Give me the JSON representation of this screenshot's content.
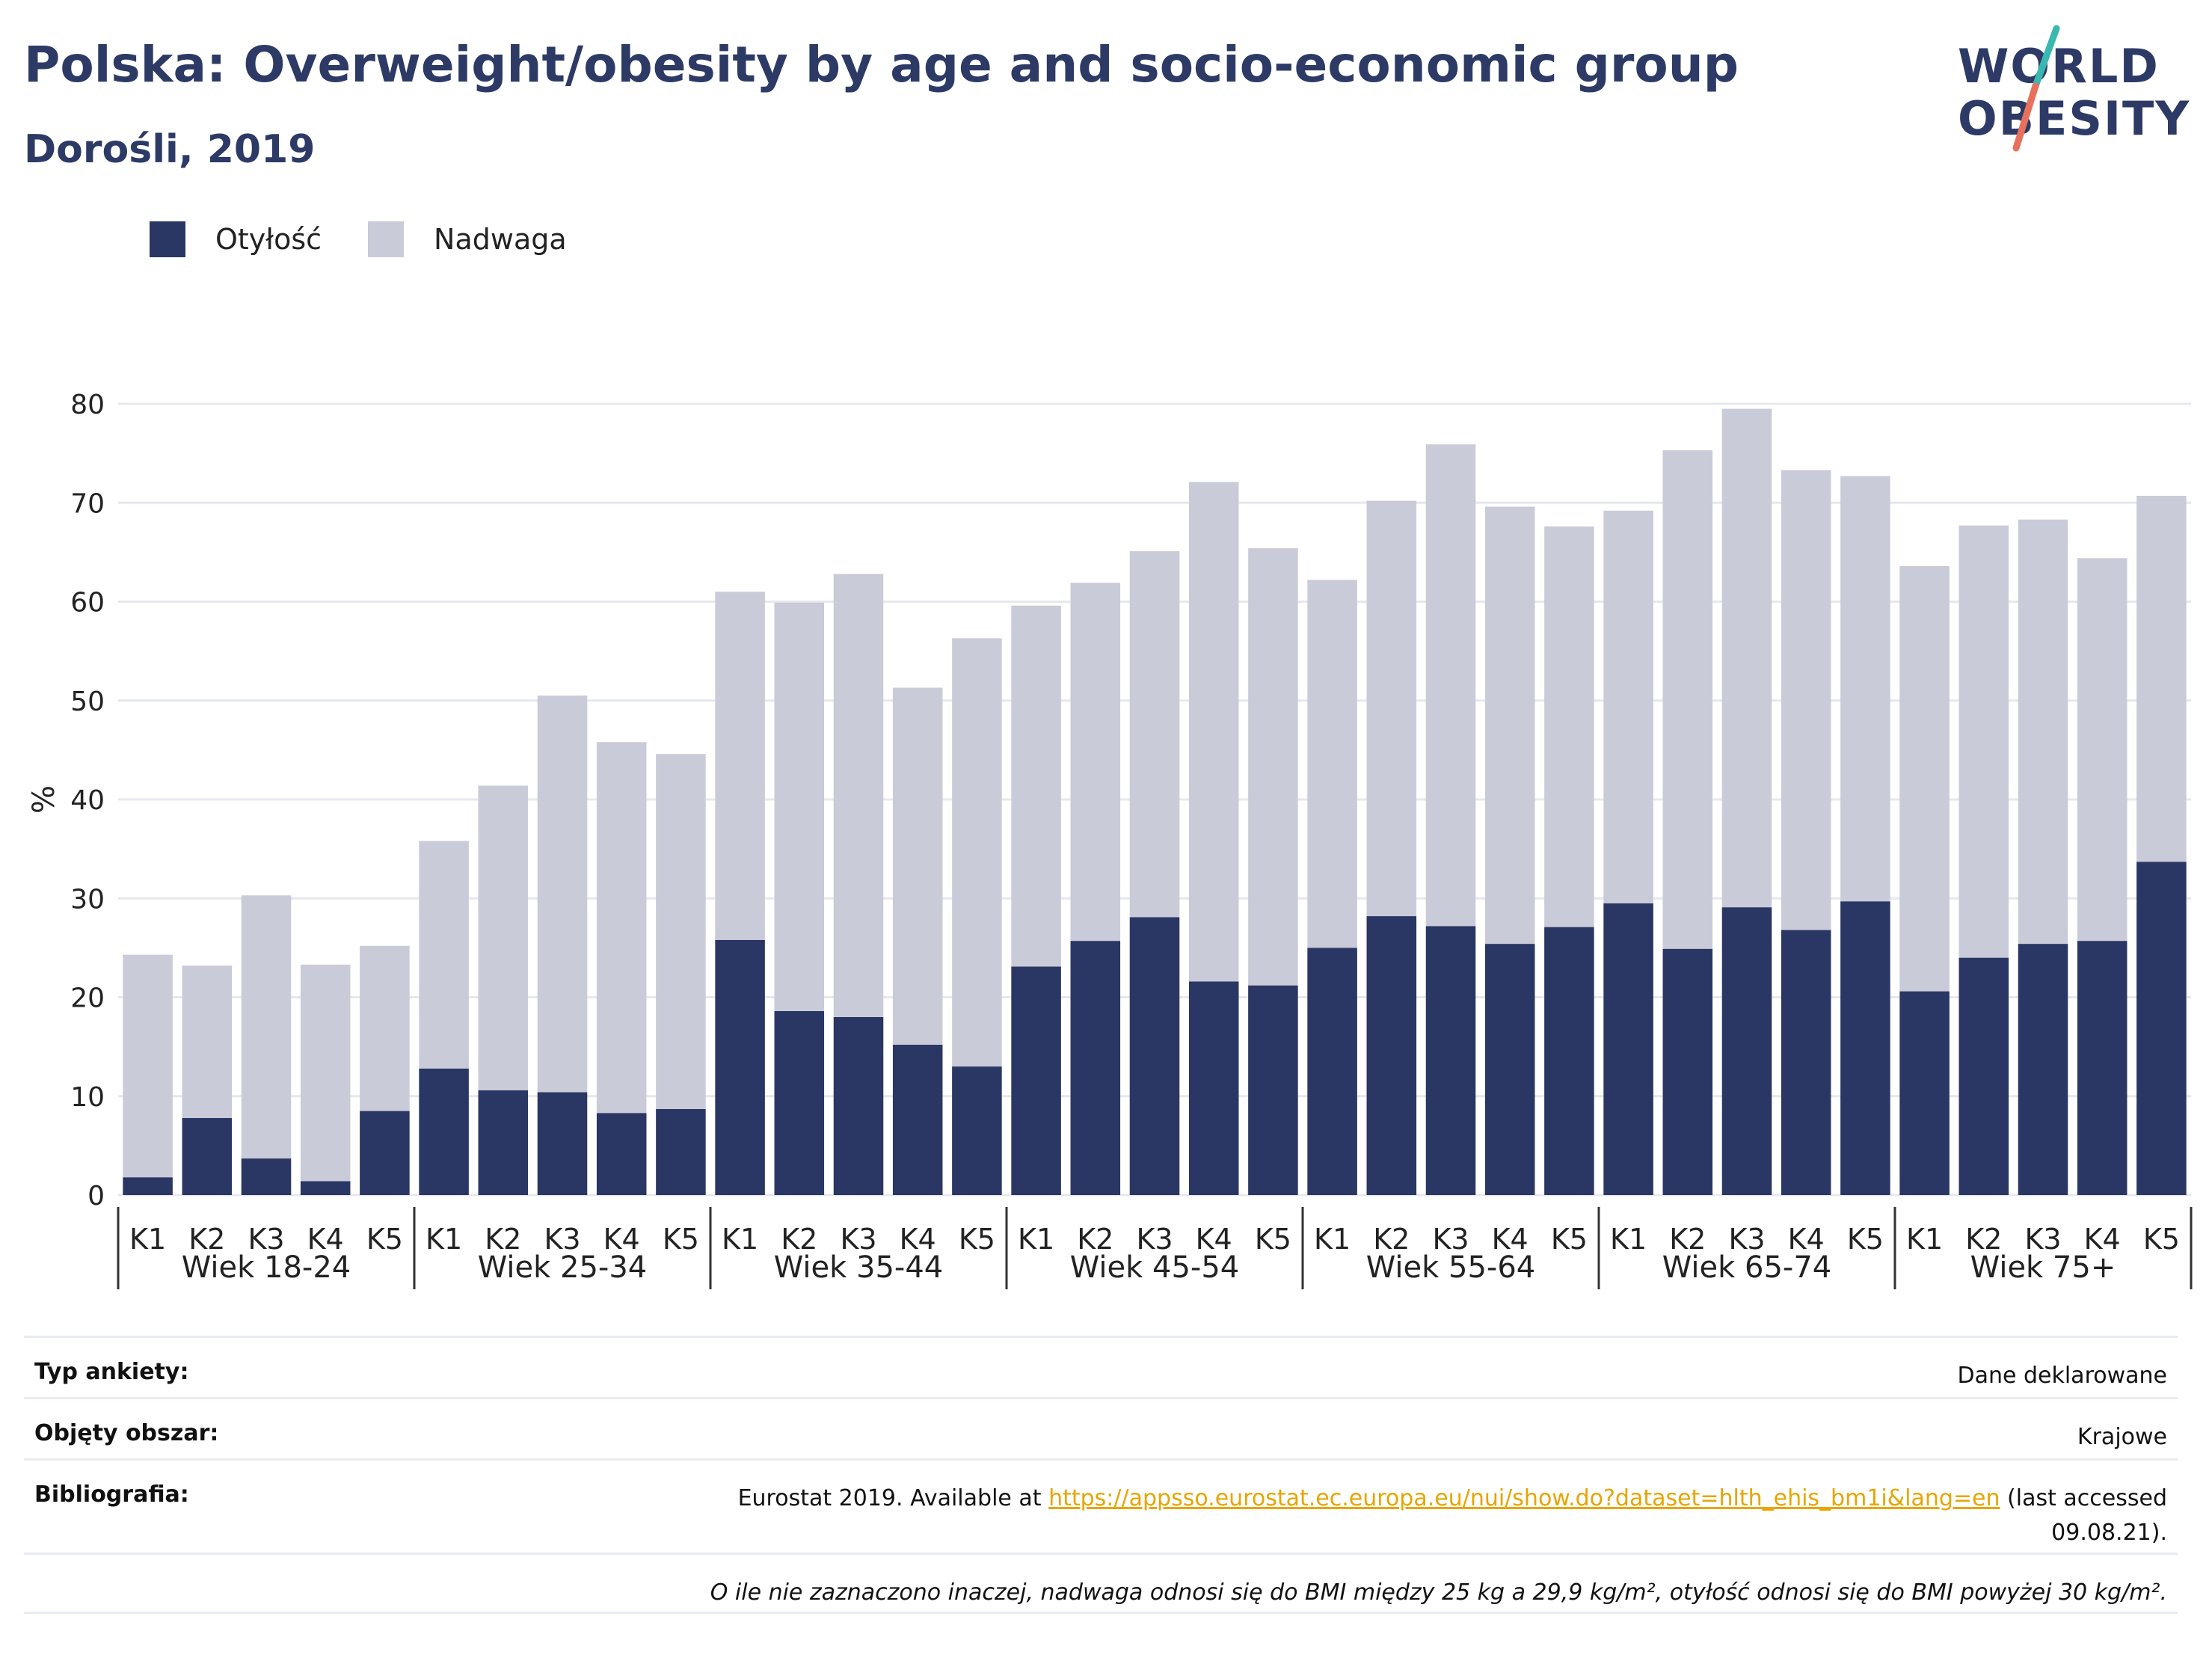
{
  "header": {
    "title": "Polska: Overweight/obesity by age and socio-economic group",
    "subtitle": "Dorośli, 2019"
  },
  "logo": {
    "line1": "WORLD",
    "line2": "OBESITY",
    "accent_colors": [
      "#39b8b1",
      "#e8715d"
    ]
  },
  "legend": {
    "items": [
      {
        "label": "Otyłość",
        "color": "#2a3663"
      },
      {
        "label": "Nadwaga",
        "color": "#c9cbd8"
      }
    ]
  },
  "chart_data": {
    "type": "bar",
    "stacked": true,
    "ylabel": "%",
    "ylim": [
      0,
      80
    ],
    "yticks": [
      0,
      10,
      20,
      30,
      40,
      50,
      60,
      70,
      80
    ],
    "grid": true,
    "legend_position": "top-left",
    "groups": [
      "Wiek 18-24",
      "Wiek 25-34",
      "Wiek 35-44",
      "Wiek 45-54",
      "Wiek 55-64",
      "Wiek 65-74",
      "Wiek 75+"
    ],
    "categories": [
      "K1",
      "K2",
      "K3",
      "K4",
      "K5"
    ],
    "series": [
      {
        "name": "Otyłość",
        "color": "#2a3663",
        "values": [
          [
            1.8,
            7.8,
            3.7,
            1.4,
            8.5
          ],
          [
            12.8,
            10.6,
            10.4,
            8.3,
            8.7
          ],
          [
            25.8,
            18.6,
            18.0,
            15.2,
            13.0
          ],
          [
            23.1,
            25.7,
            28.1,
            21.6,
            21.2
          ],
          [
            25.0,
            28.2,
            27.2,
            25.4,
            27.1
          ],
          [
            29.5,
            24.9,
            29.1,
            26.8,
            29.7
          ],
          [
            20.6,
            24.0,
            25.4,
            25.7,
            33.7
          ]
        ]
      },
      {
        "name": "Nadwaga",
        "color": "#c9cbd8",
        "values": [
          [
            22.5,
            15.4,
            26.6,
            21.9,
            16.7
          ],
          [
            23.0,
            30.8,
            40.1,
            37.5,
            35.9
          ],
          [
            35.2,
            41.3,
            44.8,
            36.1,
            43.3
          ],
          [
            36.5,
            36.2,
            37.0,
            50.5,
            44.2
          ],
          [
            37.2,
            42.0,
            48.7,
            44.2,
            40.5
          ],
          [
            39.7,
            50.4,
            50.4,
            46.5,
            43.0
          ],
          [
            43.0,
            43.7,
            42.9,
            38.7,
            37.0
          ]
        ]
      }
    ]
  },
  "table": {
    "rows": [
      {
        "key": "Typ ankiety:",
        "value": "Dane deklarowane"
      },
      {
        "key": "Objęty obszar:",
        "value": "Krajowe"
      },
      {
        "key": "Bibliografia:",
        "value_before": "Eurostat 2019. Available at ",
        "link": "https://appsso.eurostat.ec.europa.eu/nui/show.do?dataset=hlth_ehis_bm1i&lang=en",
        "value_after": " (last accessed 09.08.21)."
      }
    ],
    "note": "O ile nie zaznaczono inaczej, nadwaga odnosi się do BMI między 25 kg a 29,9 kg/m², otyłość odnosi się do BMI powyżej 30 kg/m²."
  }
}
